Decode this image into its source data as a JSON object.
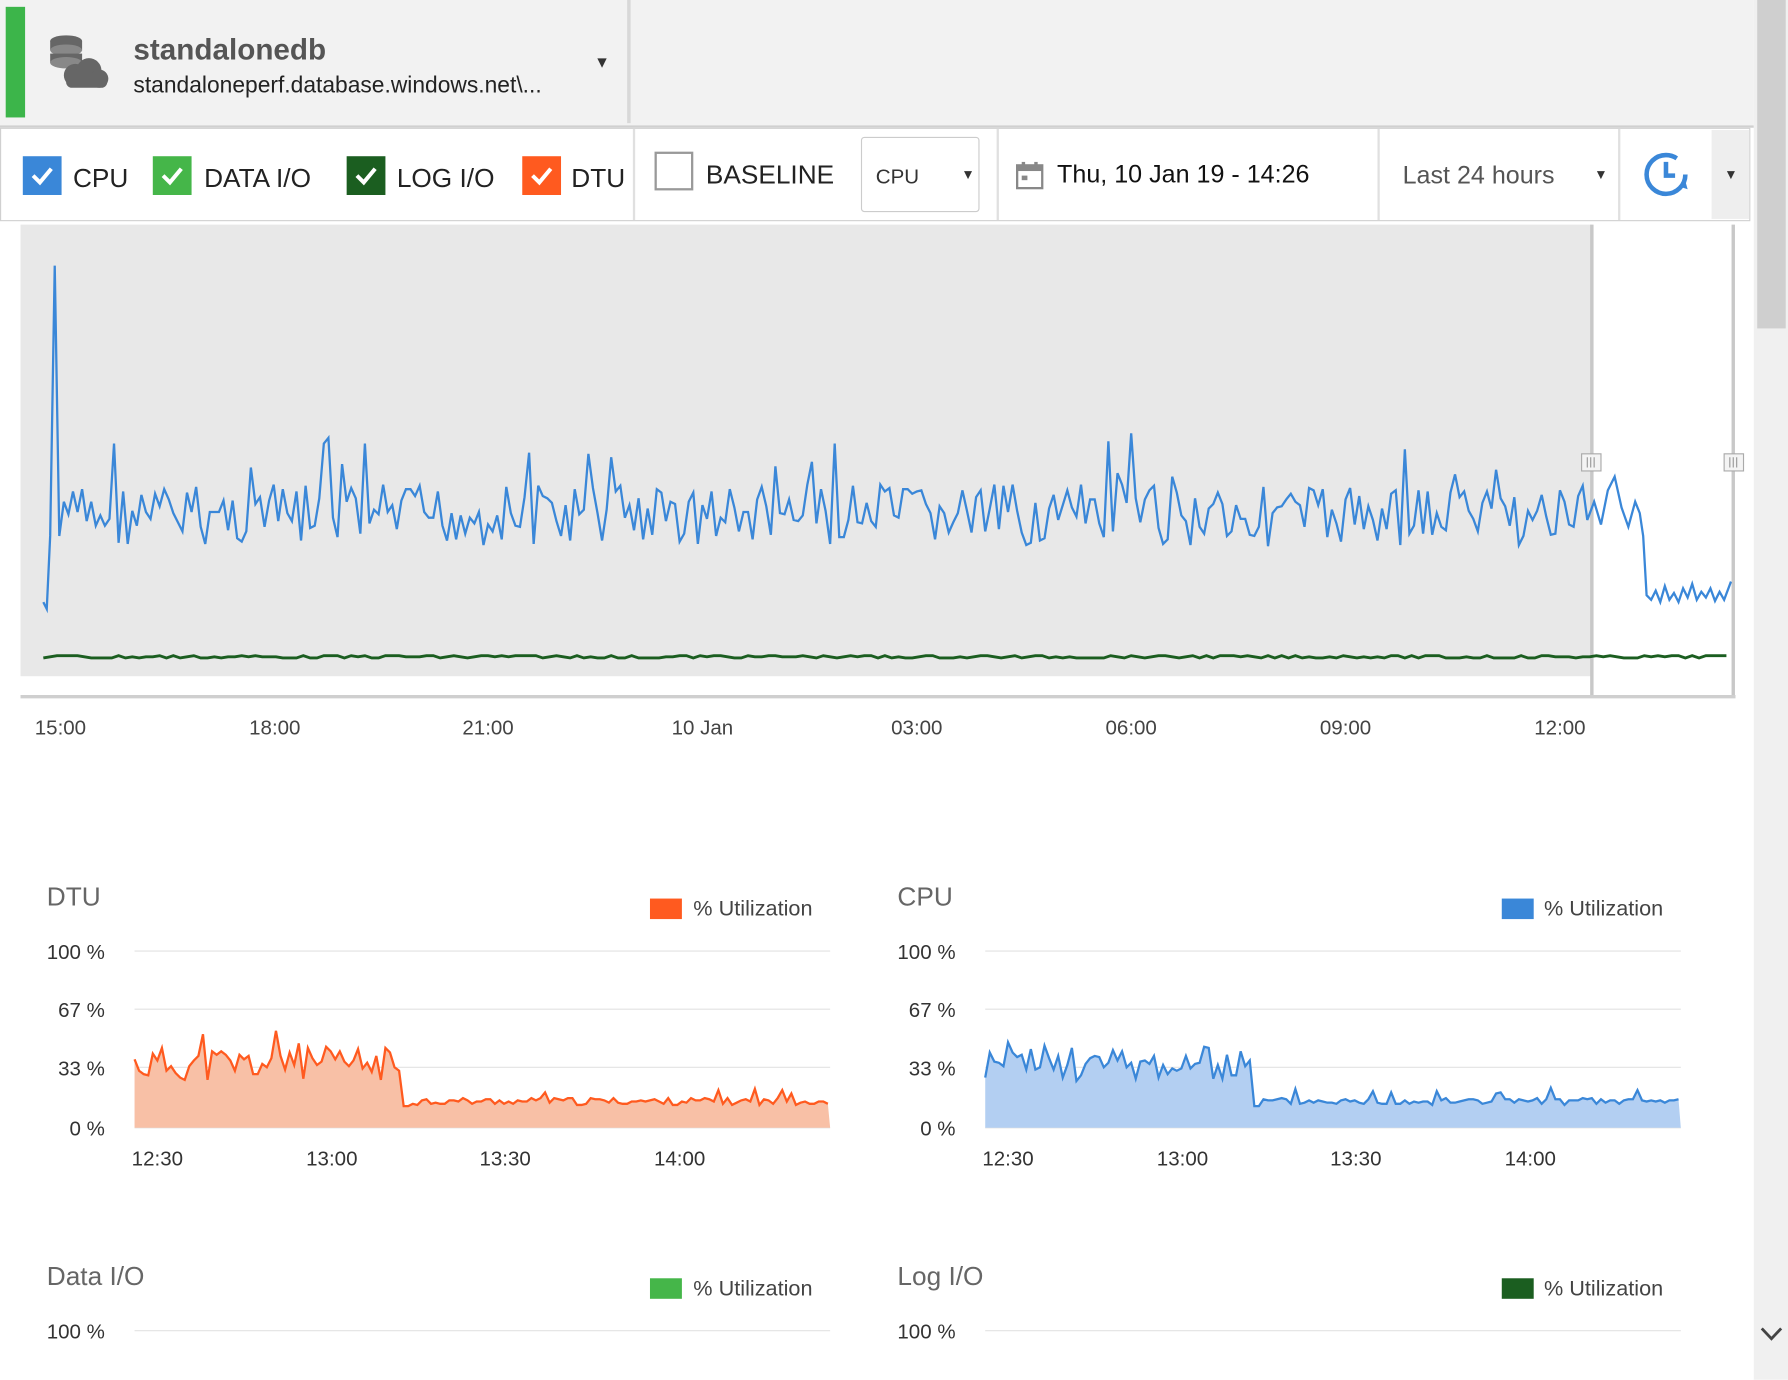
{
  "header": {
    "server_name": "standalonedb",
    "connection": "standaloneperf.database.windows.net\\...",
    "status_color": "#3cb54a"
  },
  "toolbar": {
    "checkboxes": [
      {
        "label": "CPU",
        "checked": true,
        "color": "#3a87d8"
      },
      {
        "label": "DATA I/O",
        "checked": true,
        "color": "#45b649"
      },
      {
        "label": "LOG I/O",
        "checked": true,
        "color": "#1b5e20"
      },
      {
        "label": "DTU",
        "checked": true,
        "color": "#ff5a1f"
      }
    ],
    "baseline_label": "BASELINE",
    "baseline_checked": false,
    "metric_select": "CPU",
    "date": "Thu, 10 Jan 19 - 14:26",
    "range": "Last 24 hours",
    "refresh_icon": "clock-refresh-icon"
  },
  "overview_chart": {
    "x_ticks": [
      "15:00",
      "18:00",
      "21:00",
      "10 Jan",
      "03:00",
      "06:00",
      "09:00",
      "12:00"
    ],
    "series": [
      {
        "name": "CPU",
        "color": "#3a87d8"
      },
      {
        "name": "LOG I/O",
        "color": "#1b5e20"
      }
    ]
  },
  "charts": [
    {
      "key": "dtu",
      "title": "DTU",
      "legend": "% Utilization",
      "color": "#ff5a1f",
      "fill": "#f8c0a6",
      "y_ticks": [
        "100 %",
        "67 %",
        "33 %",
        "0 %"
      ],
      "x_ticks": [
        "12:30",
        "13:00",
        "13:30",
        "14:00"
      ]
    },
    {
      "key": "cpu",
      "title": "CPU",
      "legend": "% Utilization",
      "color": "#3a87d8",
      "fill": "#b3cff2",
      "y_ticks": [
        "100 %",
        "67 %",
        "33 %",
        "0 %"
      ],
      "x_ticks": [
        "12:30",
        "13:00",
        "13:30",
        "14:00"
      ]
    },
    {
      "key": "dataio",
      "title": "Data I/O",
      "legend": "% Utilization",
      "color": "#45b649",
      "y_ticks": [
        "100 %"
      ]
    },
    {
      "key": "logio",
      "title": "Log I/O",
      "legend": "% Utilization",
      "color": "#1b5e20",
      "y_ticks": [
        "100 %"
      ]
    }
  ]
}
